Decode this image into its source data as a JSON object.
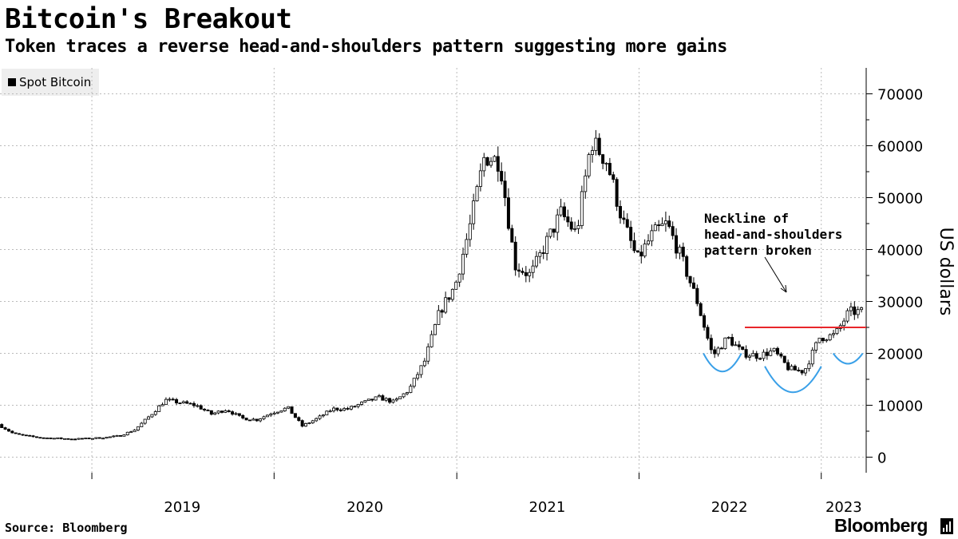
{
  "title": "Bitcoin's Breakout",
  "subtitle": "Token traces a reverse head-and-shoulders pattern suggesting more gains",
  "source": "Source: Bloomberg",
  "brand": "Bloomberg",
  "legend_label": "Spot Bitcoin",
  "annotation": "Neckline of\nhead-and-shoulders\npattern broken",
  "colors": {
    "candle": "#000000",
    "neckline": "#e8262b",
    "shoulders": "#3aa0e8",
    "grid": "#bbbbbb",
    "legend_bg": "#eeeeee"
  },
  "chart_data": {
    "type": "candlestick",
    "title": "Bitcoin's Breakout",
    "subtitle": "Token traces a reverse head-and-shoulders pattern suggesting more gains",
    "ylabel": "US dollars",
    "ylim": [
      -3000,
      75000
    ],
    "yticks": [
      0,
      10000,
      20000,
      30000,
      40000,
      50000,
      60000,
      70000
    ],
    "xticks": [
      "2019",
      "2020",
      "2021",
      "2022",
      "2023"
    ],
    "xlim": [
      "2018-07-01",
      "2023-04-01"
    ],
    "grid": true,
    "legend_position": "top-left",
    "neckline_level": 25000,
    "neckline_start": "2022-08-01",
    "series": [
      {
        "name": "Spot Bitcoin",
        "points": [
          [
            "2018-07-01",
            6300
          ],
          [
            "2018-08-01",
            4500
          ],
          [
            "2018-09-01",
            4000
          ],
          [
            "2018-10-01",
            3700
          ],
          [
            "2018-11-01",
            3600
          ],
          [
            "2018-12-01",
            3500
          ],
          [
            "2019-01-01",
            3600
          ],
          [
            "2019-02-01",
            3800
          ],
          [
            "2019-03-01",
            4100
          ],
          [
            "2019-04-01",
            5300
          ],
          [
            "2019-05-01",
            8000
          ],
          [
            "2019-06-01",
            11000
          ],
          [
            "2019-07-01",
            10500
          ],
          [
            "2019-08-01",
            10000
          ],
          [
            "2019-09-01",
            8300
          ],
          [
            "2019-10-01",
            9200
          ],
          [
            "2019-11-01",
            7500
          ],
          [
            "2019-12-01",
            7200
          ],
          [
            "2020-01-01",
            8600
          ],
          [
            "2020-02-01",
            9500
          ],
          [
            "2020-03-01",
            6000
          ],
          [
            "2020-04-01",
            7500
          ],
          [
            "2020-05-01",
            9300
          ],
          [
            "2020-06-01",
            9300
          ],
          [
            "2020-07-01",
            10500
          ],
          [
            "2020-08-01",
            11500
          ],
          [
            "2020-09-01",
            10600
          ],
          [
            "2020-10-01",
            13000
          ],
          [
            "2020-11-01",
            18500
          ],
          [
            "2020-12-01",
            28000
          ],
          [
            "2021-01-01",
            33000
          ],
          [
            "2021-02-01",
            45000
          ],
          [
            "2021-03-01",
            58000
          ],
          [
            "2021-04-01",
            57000
          ],
          [
            "2021-05-01",
            37000
          ],
          [
            "2021-06-01",
            35000
          ],
          [
            "2021-07-01",
            41000
          ],
          [
            "2021-08-01",
            47000
          ],
          [
            "2021-09-01",
            43000
          ],
          [
            "2021-10-01",
            61000
          ],
          [
            "2021-11-01",
            57000
          ],
          [
            "2021-12-01",
            46000
          ],
          [
            "2022-01-01",
            38000
          ],
          [
            "2022-02-01",
            43000
          ],
          [
            "2022-03-01",
            45000
          ],
          [
            "2022-04-01",
            38000
          ],
          [
            "2022-05-01",
            30000
          ],
          [
            "2022-06-01",
            19500
          ],
          [
            "2022-07-01",
            23000
          ],
          [
            "2022-08-01",
            20000
          ],
          [
            "2022-09-01",
            19500
          ],
          [
            "2022-10-01",
            20500
          ],
          [
            "2022-11-01",
            17000
          ],
          [
            "2022-12-01",
            16500
          ],
          [
            "2023-01-01",
            23000
          ],
          [
            "2023-02-01",
            23500
          ],
          [
            "2023-03-01",
            28000
          ]
        ]
      }
    ]
  }
}
